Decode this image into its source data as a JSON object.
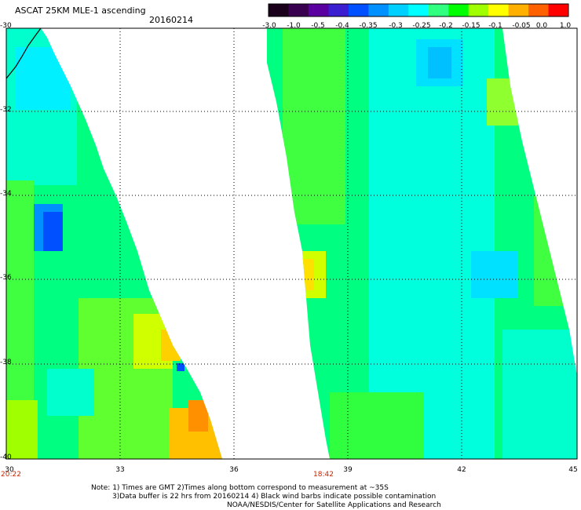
{
  "header": {
    "product_title": "ASCAT 25KM MLE-1 ascending",
    "date": "20160214"
  },
  "colorbar": {
    "colors": [
      "#1a001a",
      "#3a0050",
      "#5a00a0",
      "#3a1ed0",
      "#0050ff",
      "#0090ff",
      "#00d0ff",
      "#00ffff",
      "#30ff80",
      "#00ff00",
      "#a0ff00",
      "#ffff00",
      "#ffb000",
      "#ff6000",
      "#ff0000"
    ],
    "tick_labels": [
      "-3.0",
      "-1.0",
      "-0.5",
      "-0.4",
      "-0.35",
      "-0.3",
      "-0.25",
      "-0.2",
      "-0.15",
      "-0.1",
      "-0.05",
      "0.0",
      "1.0"
    ]
  },
  "map": {
    "lat_labels": [
      "-30",
      "-32",
      "-34",
      "-36",
      "-38",
      "-40"
    ],
    "lon_labels": [
      "33",
      "36",
      "39",
      "42",
      "45"
    ],
    "left_corner_lon": "30",
    "lon_range": [
      30,
      45
    ],
    "lat_range": [
      -30,
      -40
    ],
    "pass_times": [
      "20:22",
      "18:42"
    ]
  },
  "notes": {
    "line1": "Note: 1) Times are GMT 2)Times along bottom correspond to measurement at ~35S",
    "line2": "3)Data buffer is 22 hrs from 20160214 4) Black wind barbs indicate possible contamination",
    "line3": "NOAA/NESDIS/Center for Satellite Applications and Research"
  }
}
